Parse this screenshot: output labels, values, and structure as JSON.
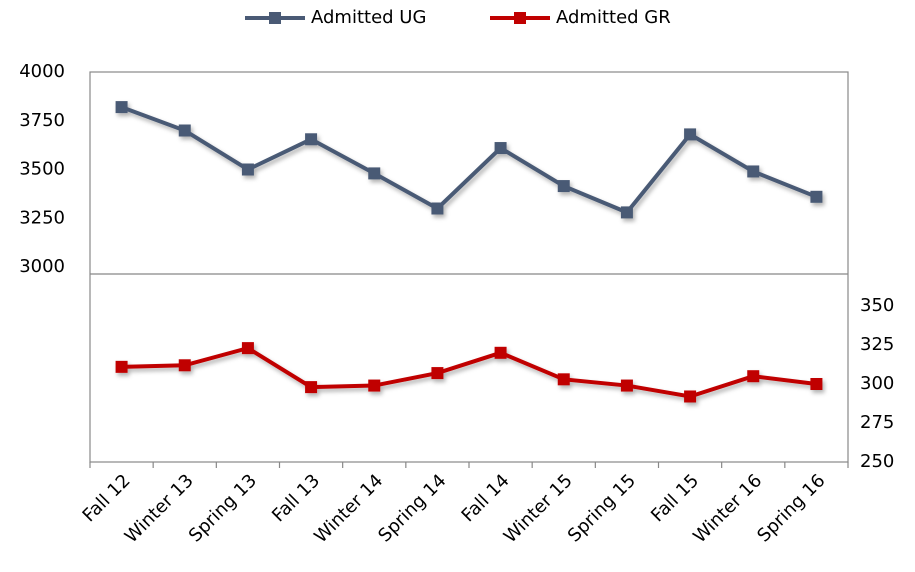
{
  "chart_data": {
    "type": "line",
    "categories": [
      "Fall 12",
      "Winter 13",
      "Spring 13",
      "Fall 13",
      "Winter 14",
      "Spring 14",
      "Fall 14",
      "Winter 15",
      "Spring 15",
      "Fall 15",
      "Winter 16",
      "Spring 16"
    ],
    "series": [
      {
        "name": "Admitted UG",
        "color": "#4a5a75",
        "values": [
          3820,
          3700,
          3500,
          3655,
          3480,
          3300,
          3610,
          3415,
          3280,
          3680,
          3490,
          3360
        ]
      },
      {
        "name": "Admitted GR",
        "color": "#c00000",
        "axis": "y2",
        "values": [
          311,
          312,
          323,
          298,
          299,
          307,
          320,
          303,
          299,
          292,
          305,
          300
        ]
      }
    ],
    "ylim": [
      2000,
      4000
    ],
    "yticks": [
      3000,
      3250,
      3500,
      3750,
      4000
    ],
    "y2lim": [
      250,
      500
    ],
    "y2ticks": [
      250,
      275,
      300,
      325,
      350
    ],
    "grid": false,
    "legend": "top"
  }
}
